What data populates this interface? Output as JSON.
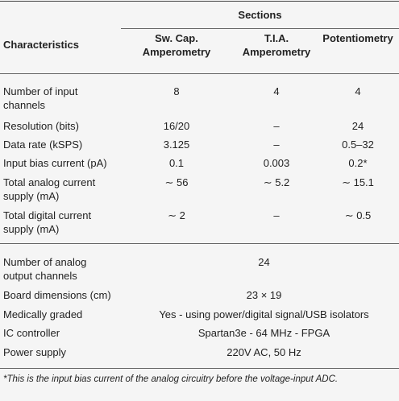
{
  "table": {
    "header": {
      "group": "Sections",
      "columns": [
        "Characteristics",
        "Sw. Cap. Amperometry",
        "T.I.A. Amperometry",
        "Potentiometry"
      ]
    },
    "rows": [
      [
        "Number of input channels",
        "8",
        "4",
        "4"
      ],
      [
        "Resolution (bits)",
        "16/20",
        "–",
        "24"
      ],
      [
        "Data rate (kSPS)",
        "3.125",
        "–",
        "0.5–32"
      ],
      [
        "Input bias current (pA)",
        "0.1",
        "0.003",
        "0.2*"
      ],
      [
        "Total analog current supply (mA)",
        "∼ 56",
        "∼ 5.2",
        "∼ 15.1"
      ],
      [
        "Total digital current supply (mA)",
        "∼ 2",
        "–",
        "∼ 0.5"
      ]
    ],
    "shared_rows": [
      [
        "Number of analog output channels",
        "24"
      ],
      [
        "Board dimensions (cm)",
        "23 × 19"
      ],
      [
        "Medically graded",
        "Yes - using power/digital signal/USB isolators"
      ],
      [
        "IC controller",
        "Spartan3e - 64 MHz - FPGA"
      ],
      [
        "Power supply",
        "220V AC, 50 Hz"
      ]
    ],
    "footnote": "*This is the input bias current of the analog circuitry before the voltage-input ADC."
  }
}
